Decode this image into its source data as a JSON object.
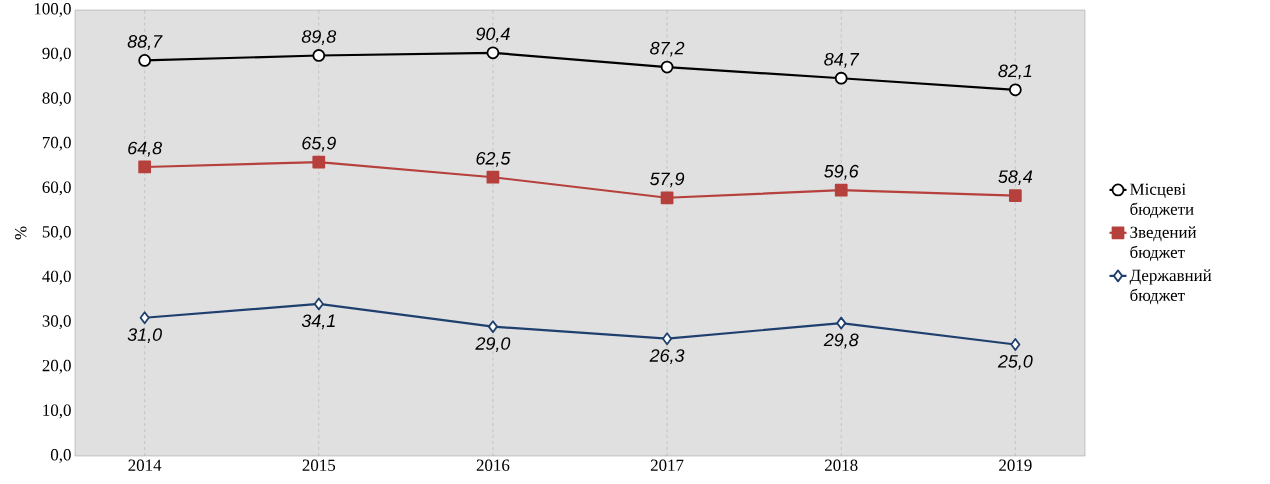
{
  "chart_data": {
    "type": "line",
    "ylabel": "%",
    "categories": [
      "2014",
      "2015",
      "2016",
      "2017",
      "2018",
      "2019"
    ],
    "series": [
      {
        "name": "Місцеві бюджети",
        "color": "#000000",
        "marker": "circle",
        "values": [
          88.7,
          89.8,
          90.4,
          87.2,
          84.7,
          82.1
        ],
        "value_labels": [
          "88,7",
          "89,8",
          "90,4",
          "87,2",
          "84,7",
          "82,1"
        ]
      },
      {
        "name": "Зведений бюджет",
        "color": "#b5403c",
        "marker": "square",
        "values": [
          64.8,
          65.9,
          62.5,
          57.9,
          59.6,
          58.4
        ],
        "value_labels": [
          "64,8",
          "65,9",
          "62,5",
          "57,9",
          "59,6",
          "58,4"
        ]
      },
      {
        "name": "Державний бюджет",
        "color": "#1f3f6e",
        "marker": "diamond",
        "values": [
          31.0,
          34.1,
          29.0,
          26.3,
          29.8,
          25.0
        ],
        "value_labels": [
          "31,0",
          "34,1",
          "29,0",
          "26,3",
          "29,8",
          "25,0"
        ]
      }
    ],
    "ylim": [
      0,
      100
    ],
    "yticks": [
      {
        "value": 0,
        "label": "0,0"
      },
      {
        "value": 10,
        "label": "10,0"
      },
      {
        "value": 20,
        "label": "20,0"
      },
      {
        "value": 30,
        "label": "30,0"
      },
      {
        "value": 40,
        "label": "40,0"
      },
      {
        "value": 50,
        "label": "50,0"
      },
      {
        "value": 60,
        "label": "60,0"
      },
      {
        "value": 70,
        "label": "70,0"
      },
      {
        "value": 80,
        "label": "80,0"
      },
      {
        "value": 90,
        "label": "90,0"
      },
      {
        "value": 100,
        "label": "100,0"
      }
    ],
    "grid": "x",
    "legend": "right",
    "line_style": "solid"
  }
}
